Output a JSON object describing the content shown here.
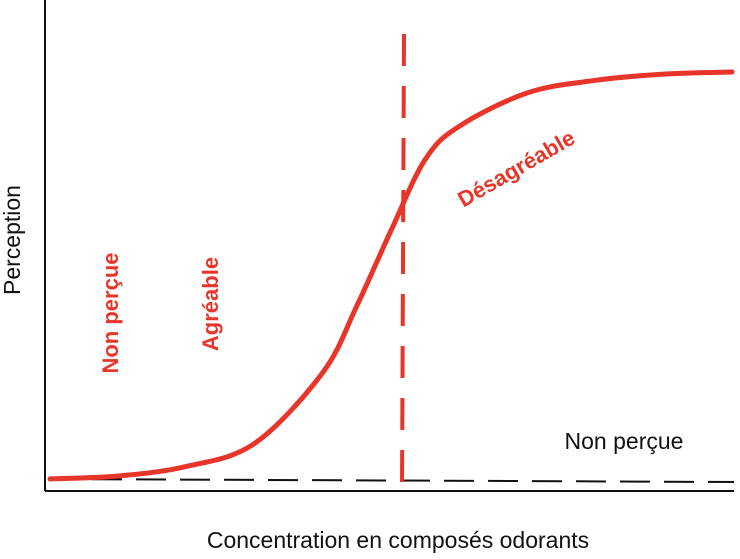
{
  "chart_data": {
    "type": "line",
    "title": "",
    "xlabel": "Concentration en composés odorants",
    "ylabel": "Perception",
    "xlim": [
      0,
      10
    ],
    "ylim": [
      0,
      10
    ],
    "grid": false,
    "series": [
      {
        "color": "#e8352a",
        "style": "solid",
        "x": [
          0,
          1,
          2,
          3,
          4,
          4.5,
          5,
          5.5,
          6,
          7,
          8,
          9,
          10
        ],
        "y": [
          0.05,
          0.12,
          0.35,
          0.9,
          2.6,
          4.2,
          6.0,
          7.7,
          8.5,
          9.3,
          9.6,
          9.75,
          9.8
        ]
      }
    ],
    "reference_lines": [
      {
        "orientation": "vertical",
        "x": 5.3,
        "color": "#e8352a",
        "style": "dashed"
      },
      {
        "orientation": "horizontal",
        "y": 0.02,
        "color": "#111111",
        "style": "dashed"
      }
    ],
    "annotations": [
      {
        "text": "Non perçue",
        "color": "#e8352a",
        "rotation": -90
      },
      {
        "text": "Agréable",
        "color": "#e8352a",
        "rotation": -90
      },
      {
        "text": "Désagréable",
        "color": "#e8352a",
        "rotation": -30
      },
      {
        "text": "Non perçue",
        "color": "#111111",
        "rotation": 0
      }
    ]
  }
}
